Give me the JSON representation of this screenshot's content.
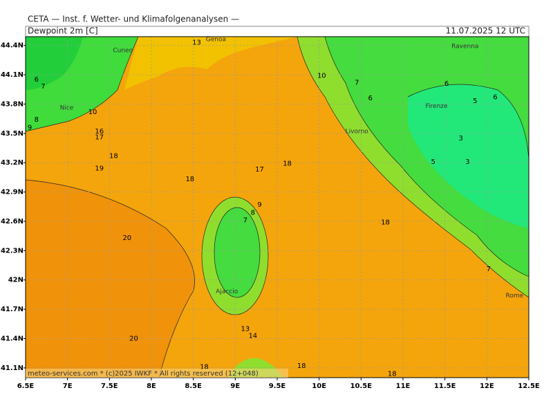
{
  "header": {
    "title": "CETA — Inst. f. Wetter- und Klimafolgenanalysen —",
    "product": "Dewpoint 2m [C]",
    "valid": "11.07.2025 12 UTC"
  },
  "map": {
    "xlim": [
      6.5,
      12.5
    ],
    "ylim": [
      41.0,
      44.49
    ],
    "grid": true,
    "xticks": [
      {
        "value": 6.5,
        "label": "6.5E"
      },
      {
        "value": 7,
        "label": "7E"
      },
      {
        "value": 7.5,
        "label": "7.5E"
      },
      {
        "value": 8,
        "label": "8E"
      },
      {
        "value": 8.5,
        "label": "8.5E"
      },
      {
        "value": 9,
        "label": "9E"
      },
      {
        "value": 9.5,
        "label": "9.5E"
      },
      {
        "value": 10,
        "label": "10E"
      },
      {
        "value": 10.5,
        "label": "10.5E"
      },
      {
        "value": 11,
        "label": "11E"
      },
      {
        "value": 11.5,
        "label": "11.5E"
      },
      {
        "value": 12,
        "label": "12E"
      },
      {
        "value": 12.5,
        "label": "12.5E"
      }
    ],
    "yticks": [
      {
        "value": 44.4,
        "label": "44.4N"
      },
      {
        "value": 44.1,
        "label": "44.1N"
      },
      {
        "value": 43.8,
        "label": "43.8N"
      },
      {
        "value": 43.5,
        "label": "43.5N"
      },
      {
        "value": 43.2,
        "label": "43.2N"
      },
      {
        "value": 42.9,
        "label": "42.9N"
      },
      {
        "value": 42.6,
        "label": "42.6N"
      },
      {
        "value": 42.3,
        "label": "42.3N"
      },
      {
        "value": 42,
        "label": "42N"
      },
      {
        "value": 41.7,
        "label": "41.7N"
      },
      {
        "value": 41.4,
        "label": "41.4N"
      },
      {
        "value": 41.1,
        "label": "41.1N"
      }
    ],
    "cities": [
      {
        "name": "Genoa",
        "lon": 8.77,
        "lat": 44.46
      },
      {
        "name": "Cuneo",
        "lon": 7.66,
        "lat": 44.35
      },
      {
        "name": "Nice",
        "lon": 6.99,
        "lat": 43.76
      },
      {
        "name": "Livorno",
        "lon": 10.45,
        "lat": 43.52
      },
      {
        "name": "Ravenna",
        "lon": 11.74,
        "lat": 44.39
      },
      {
        "name": "Firenze",
        "lon": 11.4,
        "lat": 43.78
      },
      {
        "name": "Ajaccio",
        "lon": 8.9,
        "lat": 41.88
      },
      {
        "name": "Rome",
        "lon": 12.33,
        "lat": 41.84
      }
    ],
    "contour_labels": [
      {
        "value": 13,
        "lon": 8.54,
        "lat": 44.43
      },
      {
        "value": 10,
        "lon": 10.03,
        "lat": 44.09
      },
      {
        "value": 7,
        "lon": 10.45,
        "lat": 44.02
      },
      {
        "value": 6,
        "lon": 10.61,
        "lat": 43.86
      },
      {
        "value": 6,
        "lon": 11.52,
        "lat": 44.01
      },
      {
        "value": 5,
        "lon": 11.86,
        "lat": 43.83
      },
      {
        "value": 6,
        "lon": 12.1,
        "lat": 43.87
      },
      {
        "value": 3,
        "lon": 11.69,
        "lat": 43.45
      },
      {
        "value": 3,
        "lon": 11.77,
        "lat": 43.21
      },
      {
        "value": 5,
        "lon": 11.36,
        "lat": 43.21
      },
      {
        "value": 7,
        "lon": 12.02,
        "lat": 42.11
      },
      {
        "value": 18,
        "lon": 7.55,
        "lat": 43.27
      },
      {
        "value": 19,
        "lon": 7.38,
        "lat": 43.14
      },
      {
        "value": 18,
        "lon": 8.46,
        "lat": 43.03
      },
      {
        "value": 17,
        "lon": 9.29,
        "lat": 43.13
      },
      {
        "value": 18,
        "lon": 9.62,
        "lat": 43.19
      },
      {
        "value": 18,
        "lon": 10.79,
        "lat": 42.59
      },
      {
        "value": 20,
        "lon": 7.71,
        "lat": 42.43
      },
      {
        "value": 20,
        "lon": 7.79,
        "lat": 41.4
      },
      {
        "value": 7,
        "lon": 9.12,
        "lat": 42.61
      },
      {
        "value": 8,
        "lon": 9.21,
        "lat": 42.69
      },
      {
        "value": 9,
        "lon": 9.29,
        "lat": 42.77
      },
      {
        "value": 18,
        "lon": 8.63,
        "lat": 41.11
      },
      {
        "value": 18,
        "lon": 9.79,
        "lat": 41.12
      },
      {
        "value": 18,
        "lon": 10.87,
        "lat": 41.04
      },
      {
        "value": 14,
        "lon": 9.21,
        "lat": 41.43
      },
      {
        "value": 13,
        "lon": 9.12,
        "lat": 41.5
      },
      {
        "value": 6,
        "lon": 6.63,
        "lat": 44.05
      },
      {
        "value": 7,
        "lon": 6.71,
        "lat": 43.98
      },
      {
        "value": 8,
        "lon": 6.63,
        "lat": 43.64
      },
      {
        "value": 9,
        "lon": 6.55,
        "lat": 43.56
      },
      {
        "value": 16,
        "lon": 7.38,
        "lat": 43.52
      },
      {
        "value": 17,
        "lon": 7.38,
        "lat": 43.46
      },
      {
        "value": 10,
        "lon": 7.3,
        "lat": 43.72
      }
    ]
  },
  "footer": "meteo-services.com * (c)2025 IWKF * All rights reserved (12+048)"
}
